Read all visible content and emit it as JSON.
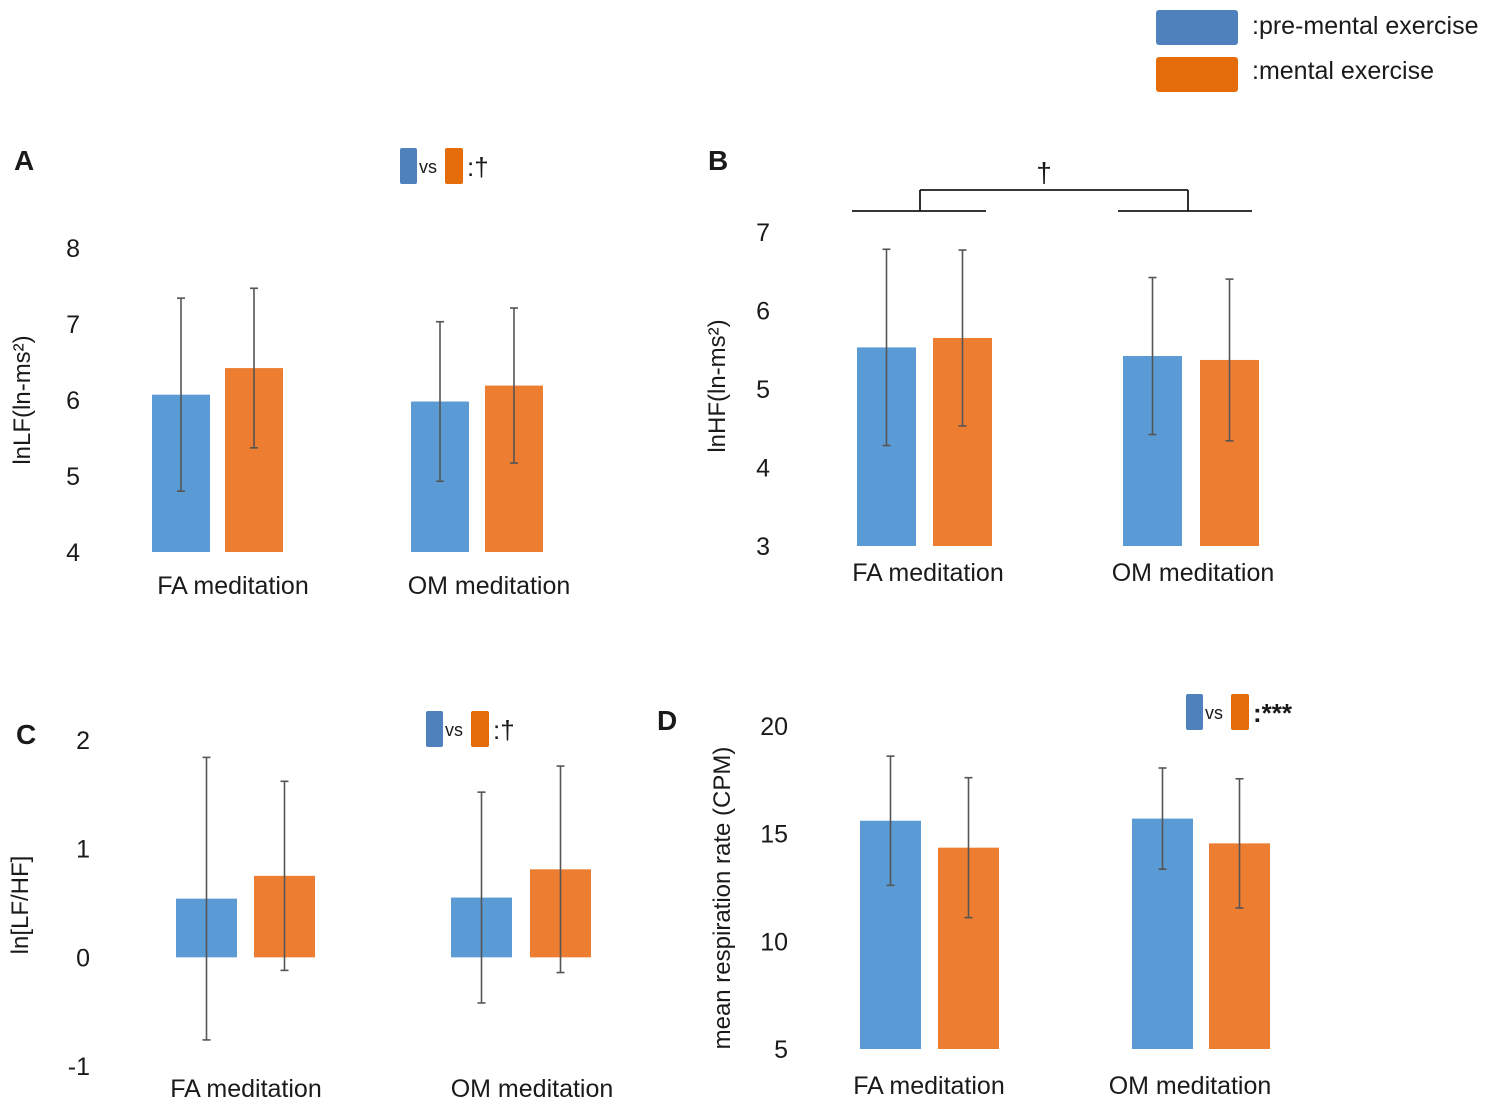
{
  "legend": {
    "items": [
      {
        "label": ":pre-mental exercise",
        "color": "#4f81bd"
      },
      {
        "label": ":mental exercise",
        "color": "#e46c0a"
      }
    ]
  },
  "colors": {
    "pre": "#5b9bd5",
    "ment": "#ed7d31",
    "pre_key": "#4f81bd",
    "ment_key": "#e46c0a",
    "err": "#555555",
    "axis": "#1a1a1a"
  },
  "chart_data": [
    {
      "panel": "A",
      "type": "bar",
      "ylabel": "lnLF(ln-ms²)",
      "ylim": [
        4,
        8
      ],
      "ticks": [
        4,
        5,
        6,
        7,
        8
      ],
      "categories": [
        "FA  meditation",
        "OM meditation"
      ],
      "series": [
        {
          "name": "pre-mental exercise",
          "values": [
            6.07,
            5.98
          ],
          "errors": [
            1.27,
            1.05
          ]
        },
        {
          "name": "mental exercise",
          "values": [
            6.42,
            6.19
          ],
          "errors": [
            1.05,
            1.02
          ]
        }
      ],
      "annotation": {
        "vs": "vs",
        "sig": ":†"
      }
    },
    {
      "panel": "B",
      "type": "bar",
      "ylabel": "lnHF(ln-ms²)",
      "ylim": [
        3,
        7
      ],
      "ticks": [
        3,
        4,
        5,
        6,
        7
      ],
      "categories": [
        "FA  meditation",
        "OM meditation"
      ],
      "series": [
        {
          "name": "pre-mental exercise",
          "values": [
            5.53,
            5.42
          ],
          "errors": [
            1.25,
            1.0
          ]
        },
        {
          "name": "mental exercise",
          "values": [
            5.65,
            5.37
          ],
          "errors": [
            1.12,
            1.03
          ]
        }
      ],
      "bracket": {
        "sig": "†"
      }
    },
    {
      "panel": "C",
      "type": "bar",
      "ylabel": "ln[LF/HF]",
      "ylim": [
        -1,
        2
      ],
      "ticks": [
        -1,
        0,
        1,
        2
      ],
      "categories": [
        "FA  meditation",
        "OM meditation"
      ],
      "series": [
        {
          "name": "pre-mental exercise",
          "values": [
            0.54,
            0.55
          ],
          "errors": [
            1.3,
            0.97
          ]
        },
        {
          "name": "mental exercise",
          "values": [
            0.75,
            0.81
          ],
          "errors": [
            0.87,
            0.95
          ]
        }
      ],
      "annotation": {
        "vs": "vs",
        "sig": ":†"
      }
    },
    {
      "panel": "D",
      "type": "bar",
      "ylabel": "mean respiration rate  (CPM)",
      "ylim": [
        5,
        20
      ],
      "ticks": [
        5,
        10,
        15,
        20
      ],
      "categories": [
        "FA  meditation",
        "OM meditation"
      ],
      "series": [
        {
          "name": "pre-mental exercise",
          "values": [
            15.6,
            15.7
          ],
          "errors": [
            3.0,
            2.35
          ]
        },
        {
          "name": "mental exercise",
          "values": [
            14.35,
            14.55
          ],
          "errors": [
            3.25,
            3.0
          ]
        }
      ],
      "annotation": {
        "vs": "vs",
        "sig": ":***"
      }
    }
  ]
}
